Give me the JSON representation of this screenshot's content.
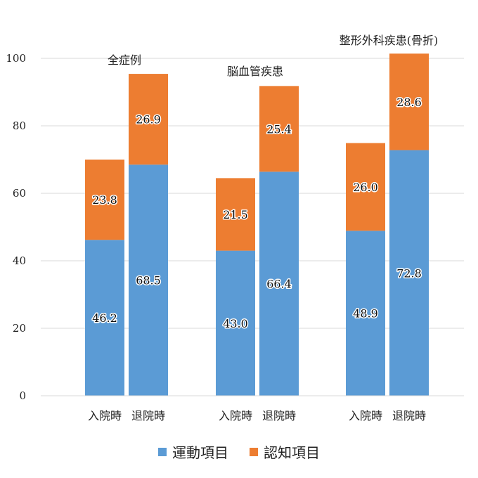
{
  "chart_data": {
    "type": "bar",
    "stacked": true,
    "ylim": [
      0,
      100
    ],
    "yticks": [
      0,
      20,
      40,
      60,
      80,
      100
    ],
    "groups": [
      {
        "title": "全症例",
        "bars": [
          {
            "label": "入院時",
            "motor": 46.2,
            "cognitive": 23.8
          },
          {
            "label": "退院時",
            "motor": 68.5,
            "cognitive": 26.9
          }
        ]
      },
      {
        "title": "脳血管疾患",
        "bars": [
          {
            "label": "入院時",
            "motor": 43.0,
            "cognitive": 21.5
          },
          {
            "label": "退院時",
            "motor": 66.4,
            "cognitive": 25.4
          }
        ]
      },
      {
        "title": "整形外科疾患(骨折)",
        "bars": [
          {
            "label": "入院時",
            "motor": 48.9,
            "cognitive": 26.0
          },
          {
            "label": "退院時",
            "motor": 72.8,
            "cognitive": 28.6
          }
        ]
      }
    ],
    "series": [
      {
        "key": "motor",
        "name": "運動項目",
        "color": "#5b9bd5"
      },
      {
        "key": "cognitive",
        "name": "認知項目",
        "color": "#ed7d31"
      }
    ],
    "legend_position": "bottom"
  }
}
